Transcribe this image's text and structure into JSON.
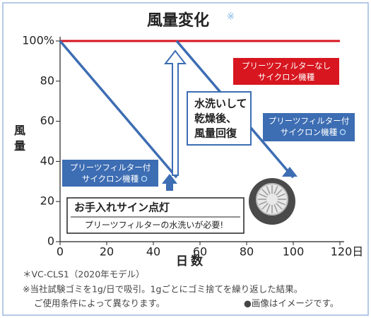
{
  "chart_data": {
    "type": "line",
    "title": "風量変化",
    "title_mark": "※",
    "y_label": "風量",
    "x_label": "日数",
    "xlim": [
      0,
      120
    ],
    "ylim": [
      0,
      100
    ],
    "xticks": [
      0,
      20,
      40,
      60,
      80,
      100,
      {
        "value": 120,
        "label": "120日"
      }
    ],
    "yticks": [
      0,
      20,
      40,
      60,
      80,
      {
        "value": 100,
        "label": "100%"
      }
    ],
    "grid": false,
    "series": [
      {
        "name": "プリーツフィルターなし\nサイクロン機種",
        "color": "#d7161f",
        "x": [
          0,
          120
        ],
        "values": [
          100,
          100
        ]
      },
      {
        "name": "プリーツフィルター付\nサイクロン機種",
        "color": "#3d6db3",
        "x": [
          0,
          50,
          50,
          50,
          100
        ],
        "values": [
          100,
          32,
          null,
          100,
          32
        ]
      }
    ],
    "annotations": {
      "recovery": [
        "水洗いして",
        "乾燥後、",
        "風量回復"
      ],
      "sign_title": "お手入れサイン点灯",
      "sign_text": "プリーツフィルターの水洗いが必要!"
    },
    "footnotes": {
      "model": "＊VC-CLS1（2020年モデル）",
      "test": "※当社試験ゴミを1g/日で吸引。1gごとにゴミ捨てを繰り返した結果。",
      "conditions": "ご使用条件によって異なります。",
      "image": "●画像はイメージです。"
    }
  }
}
